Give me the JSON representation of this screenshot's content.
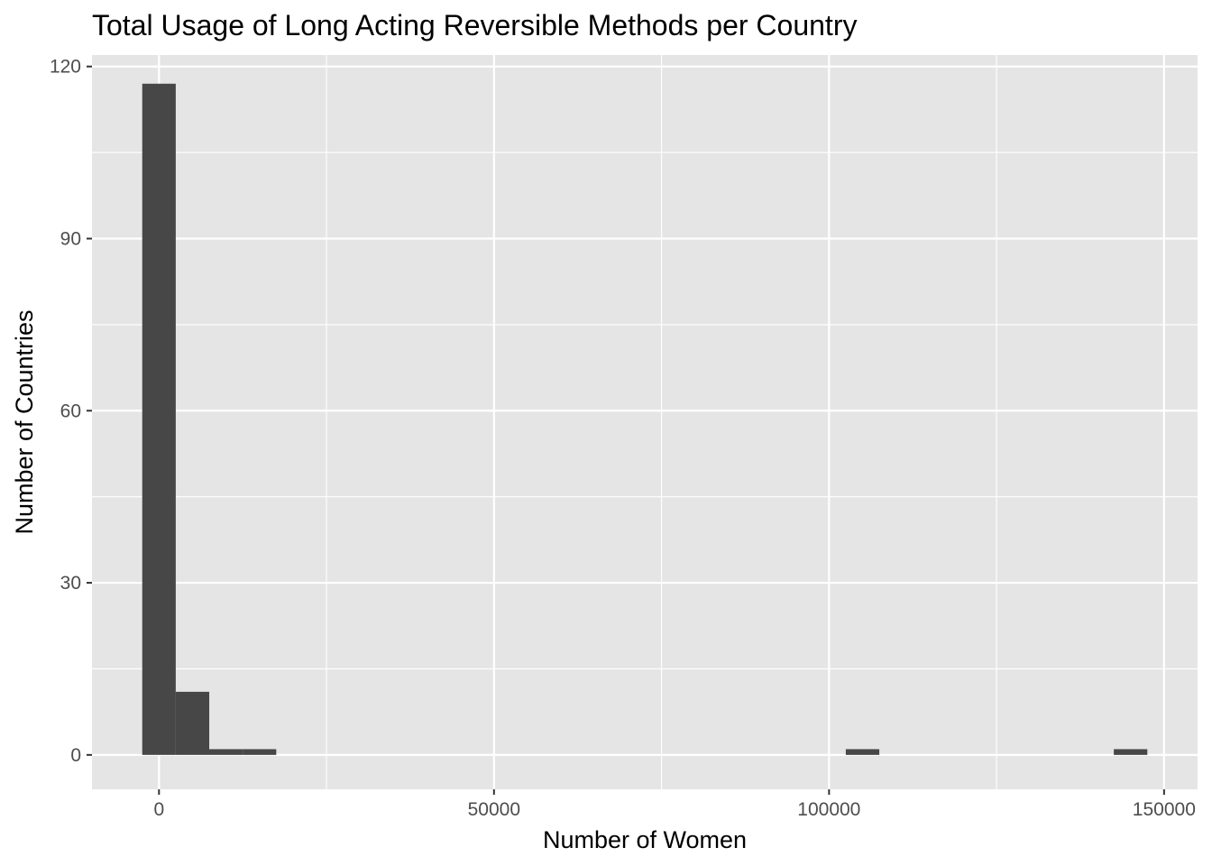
{
  "chart_data": {
    "type": "bar",
    "subtype": "histogram",
    "title": "Total Usage of Long Acting Reversible Methods per Country",
    "xlabel": "Number of Women",
    "ylabel": "Number of Countries",
    "xlim": [
      -10000,
      155000
    ],
    "ylim": [
      -6,
      122
    ],
    "x_ticks": [
      0,
      50000,
      100000,
      150000
    ],
    "x_tick_labels": [
      "0",
      "50000",
      "100000",
      "150000"
    ],
    "y_ticks": [
      0,
      30,
      60,
      90,
      120
    ],
    "y_tick_labels": [
      "0",
      "30",
      "60",
      "90",
      "120"
    ],
    "bins": [
      {
        "x0": -2500,
        "x1": 2500,
        "count": 117
      },
      {
        "x0": 2500,
        "x1": 7500,
        "count": 11
      },
      {
        "x0": 7500,
        "x1": 12500,
        "count": 1
      },
      {
        "x0": 12500,
        "x1": 17500,
        "count": 1
      },
      {
        "x0": 102500,
        "x1": 107500,
        "count": 1
      },
      {
        "x0": 142500,
        "x1": 147500,
        "count": 1
      }
    ],
    "bar_color": "#474747",
    "panel_color": "#e5e5e5",
    "grid_color": "#ffffff",
    "grid": true,
    "legend": "none"
  }
}
